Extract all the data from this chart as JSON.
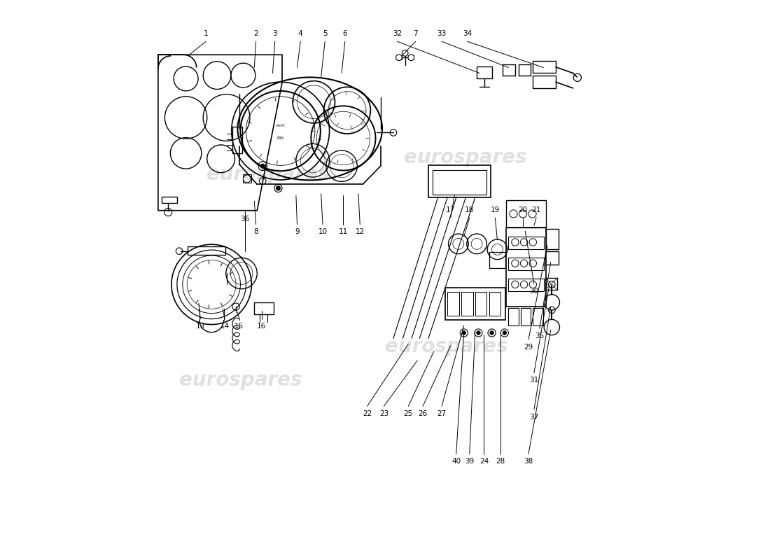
{
  "background_color": "#ffffff",
  "line_color": "#000000",
  "watermark_positions": [
    [
      2.3,
      6.9,
      "eurospares"
    ],
    [
      5.85,
      7.2,
      "eurospares"
    ],
    [
      1.8,
      3.2,
      "eurospares"
    ],
    [
      5.5,
      3.8,
      "eurospares"
    ]
  ],
  "top_labels": {
    "1": [
      1.18,
      9.35,
      0.88,
      9.05
    ],
    "2": [
      2.08,
      9.35,
      2.05,
      8.82
    ],
    "3": [
      2.42,
      9.35,
      2.38,
      8.72
    ],
    "4": [
      2.88,
      9.35,
      2.82,
      8.82
    ],
    "5": [
      3.32,
      9.35,
      3.25,
      8.65
    ],
    "6": [
      3.68,
      9.35,
      3.62,
      8.72
    ],
    "7": [
      4.95,
      9.35,
      4.72,
      9.05
    ]
  },
  "top_right_labels": {
    "32": [
      4.62,
      9.35,
      6.1,
      8.72
    ],
    "33": [
      5.42,
      9.35,
      6.62,
      8.82
    ],
    "34": [
      5.88,
      9.35,
      7.25,
      8.82
    ]
  },
  "cluster_bottom_labels": {
    "8": [
      2.08,
      5.95,
      2.05,
      6.42
    ],
    "9": [
      2.82,
      5.95,
      2.8,
      6.52
    ],
    "10": [
      3.28,
      5.95,
      3.25,
      6.55
    ],
    "11": [
      3.65,
      5.95,
      3.65,
      6.52
    ],
    "12": [
      3.95,
      5.95,
      3.92,
      6.55
    ]
  },
  "gauge_labels": {
    "36": [
      1.88,
      6.18,
      1.88,
      5.52
    ],
    "13": [
      1.08,
      4.25,
      1.05,
      4.58
    ],
    "14": [
      1.52,
      4.25,
      1.48,
      4.48
    ],
    "15": [
      1.78,
      4.25,
      1.75,
      4.42
    ],
    "16": [
      2.18,
      4.25,
      2.18,
      4.45
    ]
  },
  "right_top_labels": {
    "17": [
      5.58,
      6.18,
      5.65,
      6.52
    ],
    "18": [
      5.92,
      6.18,
      5.82,
      5.78
    ],
    "19": [
      6.38,
      6.18,
      6.42,
      5.72
    ],
    "20": [
      6.88,
      6.18,
      6.88,
      5.95
    ],
    "21": [
      7.12,
      6.18,
      7.08,
      5.98
    ]
  },
  "right_mid_labels": {
    "30": [
      7.08,
      4.88,
      6.92,
      5.88
    ],
    "29": [
      6.98,
      3.88,
      7.32,
      5.62
    ],
    "35": [
      7.18,
      4.08,
      7.38,
      5.32
    ],
    "27": [
      5.42,
      2.68,
      5.82,
      4.18
    ],
    "31": [
      7.08,
      3.28,
      7.35,
      4.88
    ]
  },
  "bottom_labels": {
    "22": [
      4.08,
      2.68,
      4.82,
      3.85
    ],
    "23": [
      4.38,
      2.68,
      4.98,
      3.55
    ],
    "25": [
      4.82,
      2.68,
      5.28,
      3.72
    ],
    "26": [
      5.08,
      2.68,
      5.58,
      3.82
    ],
    "40": [
      5.68,
      1.82,
      5.82,
      4.08
    ],
    "39": [
      5.92,
      1.82,
      6.02,
      4.08
    ],
    "24": [
      6.18,
      1.82,
      6.18,
      4.02
    ],
    "28": [
      6.48,
      1.82,
      6.48,
      4.08
    ],
    "37": [
      7.08,
      2.62,
      7.38,
      4.52
    ],
    "38": [
      6.98,
      1.82,
      7.38,
      4.1
    ]
  }
}
